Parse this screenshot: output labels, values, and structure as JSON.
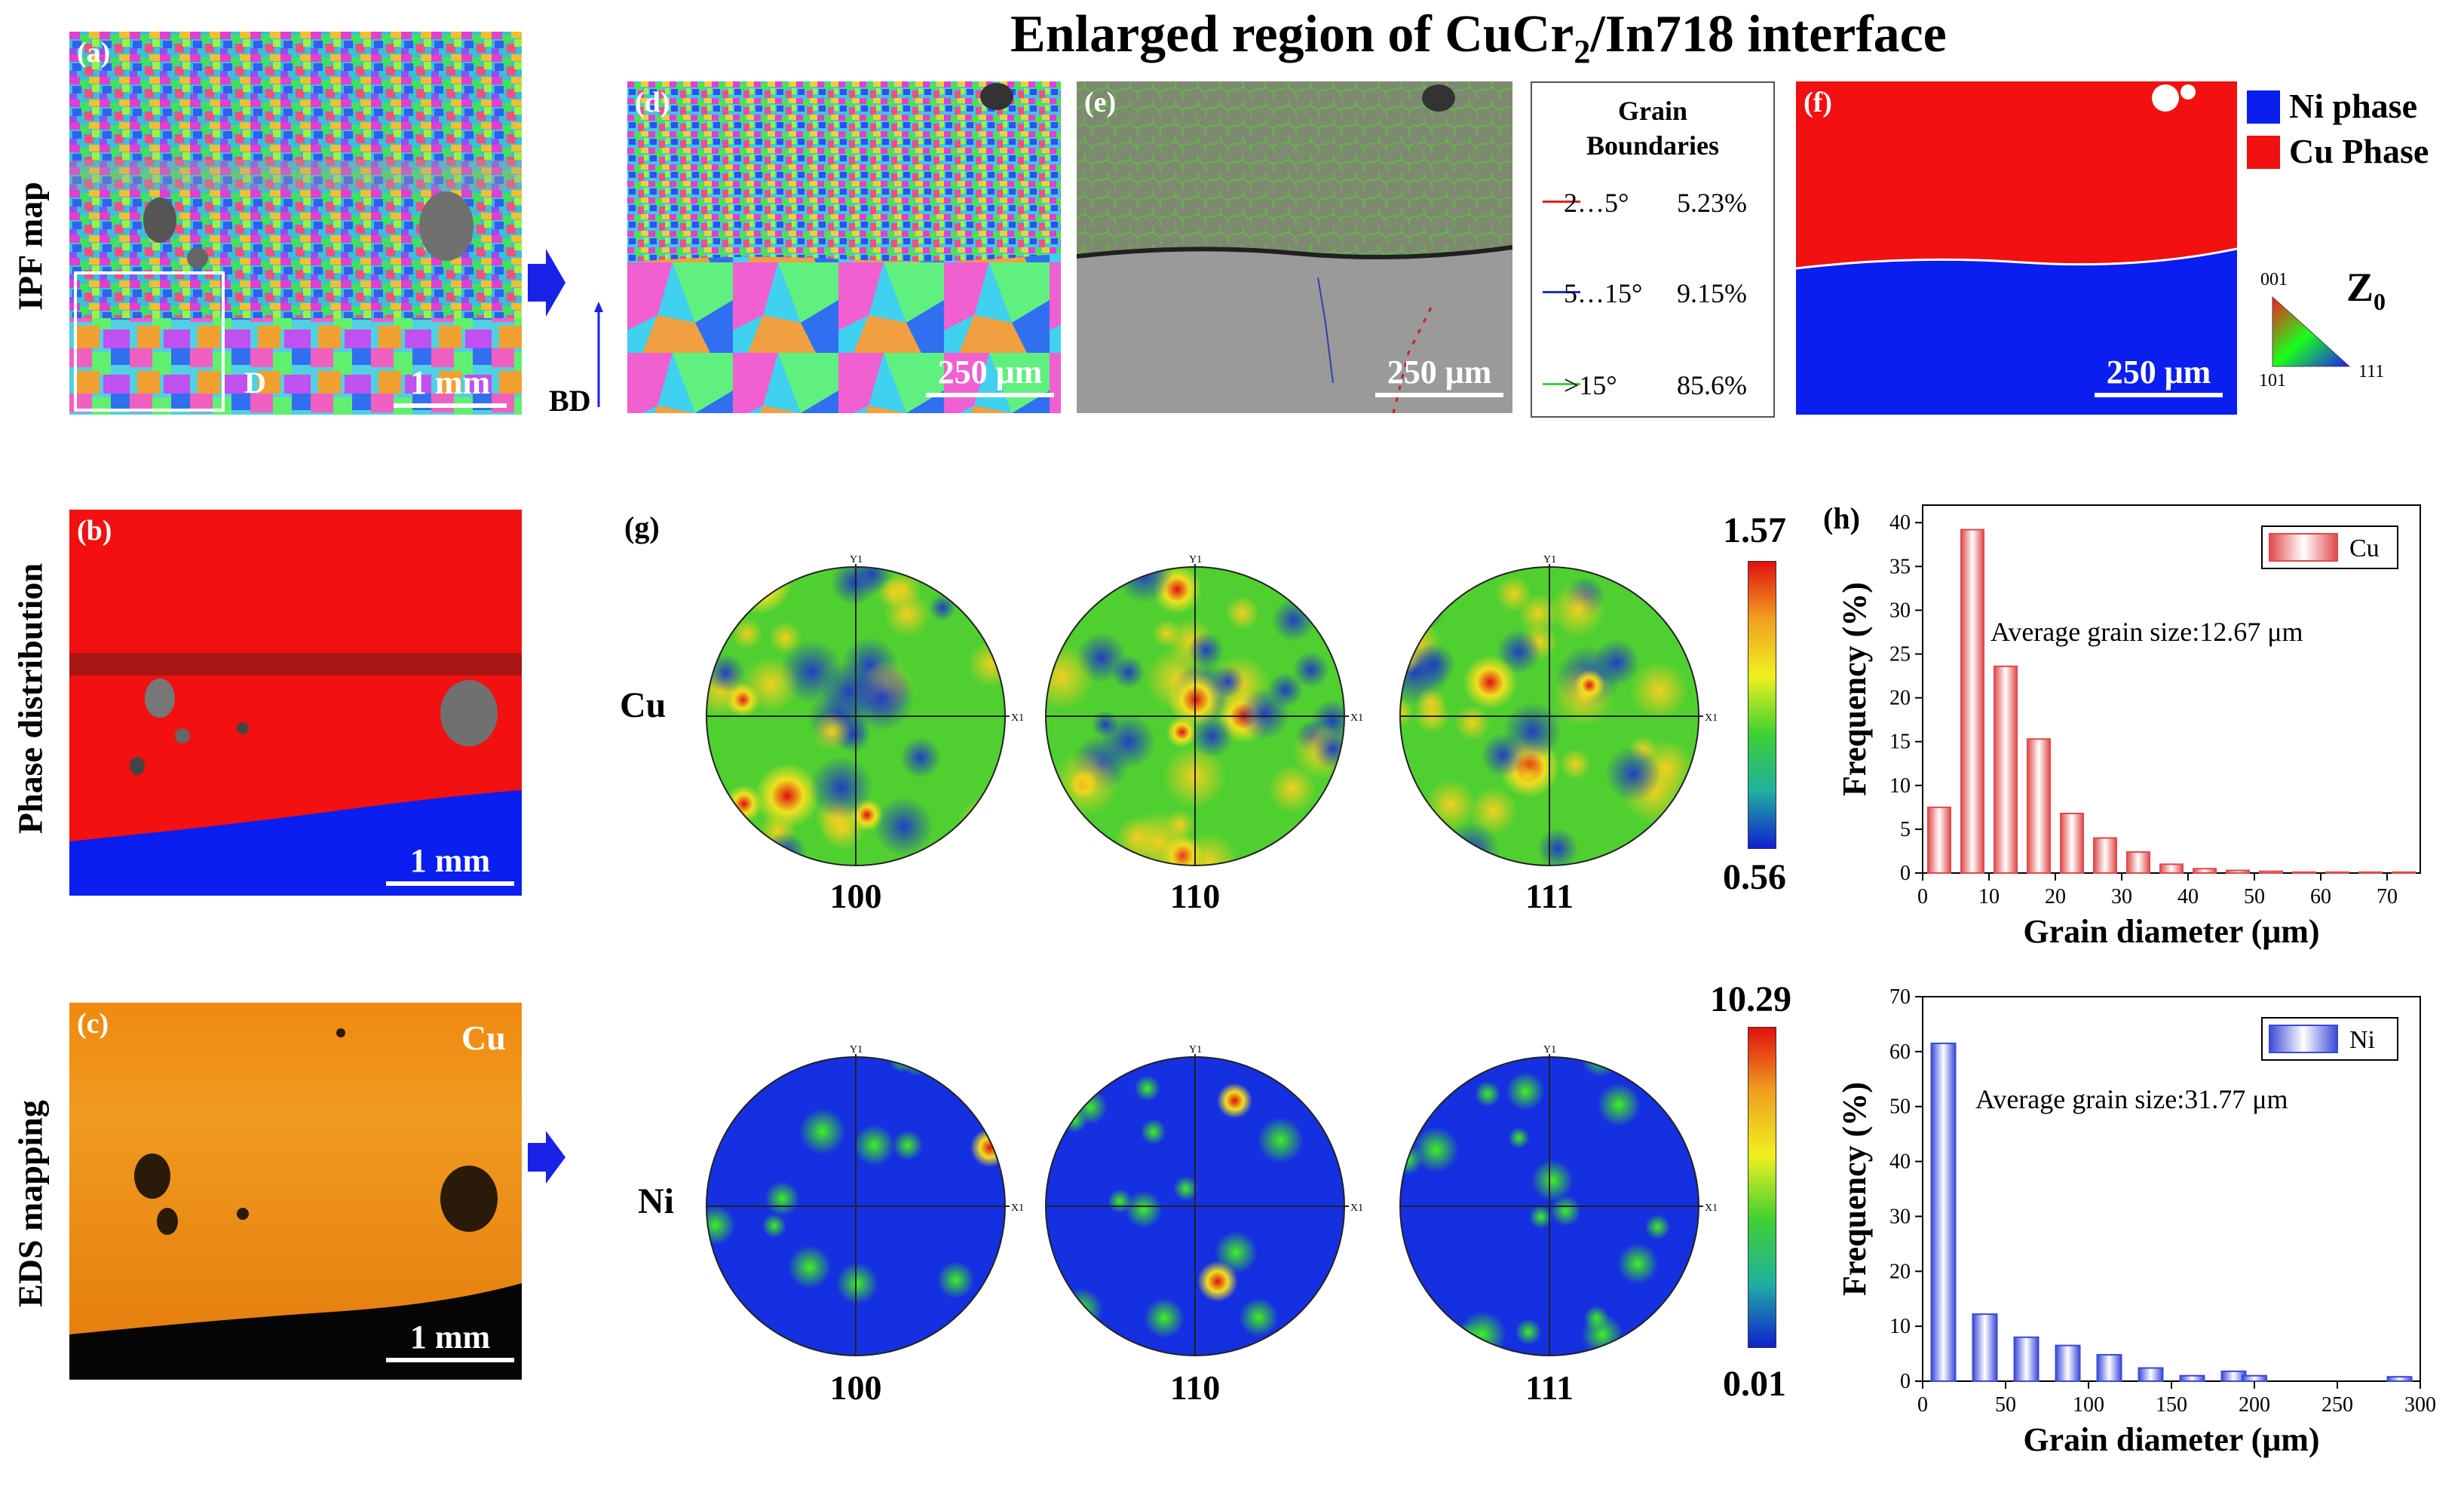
{
  "title_main": "Enlarged region of CuCr",
  "title_sub": "2",
  "title_rest": "/In718 interface",
  "row_labels": {
    "ipf": "IPF map",
    "phase": "Phase distribution",
    "eds": "EDS mapping"
  },
  "panels": {
    "a": "(a)",
    "b": "(b)",
    "c": "(c)",
    "d": "(d)",
    "e": "(e)",
    "f": "(f)",
    "g": "(g)",
    "h": "(h)"
  },
  "scale": {
    "mm": "1 mm",
    "um": "250 μm"
  },
  "panel_a_extra": "D",
  "bd_label": "BD",
  "eds_element": "Cu",
  "grain_boundaries": {
    "title_line1": "Grain",
    "title_line2": "Boundaries",
    "rows": [
      {
        "range": "2…5°",
        "value": "5.23%",
        "color": "#e02020"
      },
      {
        "range": "5…15°",
        "value": "9.15%",
        "color": "#2030c0"
      },
      {
        "range": ">15°",
        "value": "85.6%",
        "color": "#40d040"
      }
    ]
  },
  "phase_legend": [
    {
      "label": "Ni phase",
      "color": "#0a1ef0"
    },
    {
      "label": "Cu Phase",
      "color": "#f21010"
    }
  ],
  "ipf_key": {
    "z": "Z",
    "z_sub": "0",
    "t001": "001",
    "t101": "101",
    "t111": "111"
  },
  "pole_figures": {
    "cu_row_label": "Cu",
    "ni_row_label": "Ni",
    "names": [
      "100",
      "110",
      "111"
    ],
    "axis_y": "Y1",
    "axis_x": "X1",
    "cu_scale": {
      "max": "1.57",
      "min": "0.56"
    },
    "ni_scale": {
      "max": "10.29",
      "min": "0.01"
    }
  },
  "chart_data": [
    {
      "type": "bar",
      "title": "",
      "legend": "Cu",
      "annotation": "Average grain size:12.67 μm",
      "xlabel": "Grain diameter (μm)",
      "ylabel": "Frequency (%)",
      "x": [
        2.5,
        7.5,
        12.5,
        17.5,
        22.5,
        27.5,
        32.5,
        37.5,
        42.5,
        47.5,
        52.5,
        57.5,
        62.5,
        67.5,
        72.5
      ],
      "values": [
        7.5,
        39.2,
        23.6,
        15.3,
        6.8,
        4.0,
        2.4,
        1.0,
        0.5,
        0.3,
        0.2,
        0.1,
        0.1,
        0.1,
        0.1
      ],
      "xlim": [
        0,
        75
      ],
      "ylim": [
        0,
        42
      ],
      "xticks": [
        0,
        10,
        20,
        30,
        40,
        50,
        60,
        70
      ],
      "yticks": [
        0,
        5,
        10,
        15,
        20,
        25,
        30,
        35,
        40
      ],
      "color": "#e04a4a"
    },
    {
      "type": "bar",
      "title": "",
      "legend": "Ni",
      "annotation": "Average grain size:31.77 μm",
      "xlabel": "Grain diameter (μm)",
      "ylabel": "Frequency (%)",
      "x": [
        12.5,
        37.5,
        62.5,
        87.5,
        112.5,
        137.5,
        162.5,
        187.5,
        212.5,
        237.5,
        262.5,
        287.5
      ],
      "values": [
        61.5,
        12.2,
        8.0,
        6.5,
        4.8,
        2.4,
        1.0,
        1.8,
        1.0,
        1.0,
        0,
        0.8
      ],
      "bar_x": [
        12.5,
        37.5,
        62.5,
        87.5,
        112.5,
        137.5,
        162.5,
        187.5,
        200,
        287.5
      ],
      "bar_values": [
        61.5,
        12.2,
        8.0,
        6.5,
        4.8,
        2.4,
        1.0,
        1.8,
        1.0,
        0.8
      ],
      "xlim": [
        0,
        300
      ],
      "ylim": [
        0,
        70
      ],
      "xticks": [
        0,
        50,
        100,
        150,
        200,
        250,
        300
      ],
      "yticks": [
        0,
        10,
        20,
        30,
        40,
        50,
        60,
        70
      ],
      "color": "#3a4ad8"
    }
  ]
}
